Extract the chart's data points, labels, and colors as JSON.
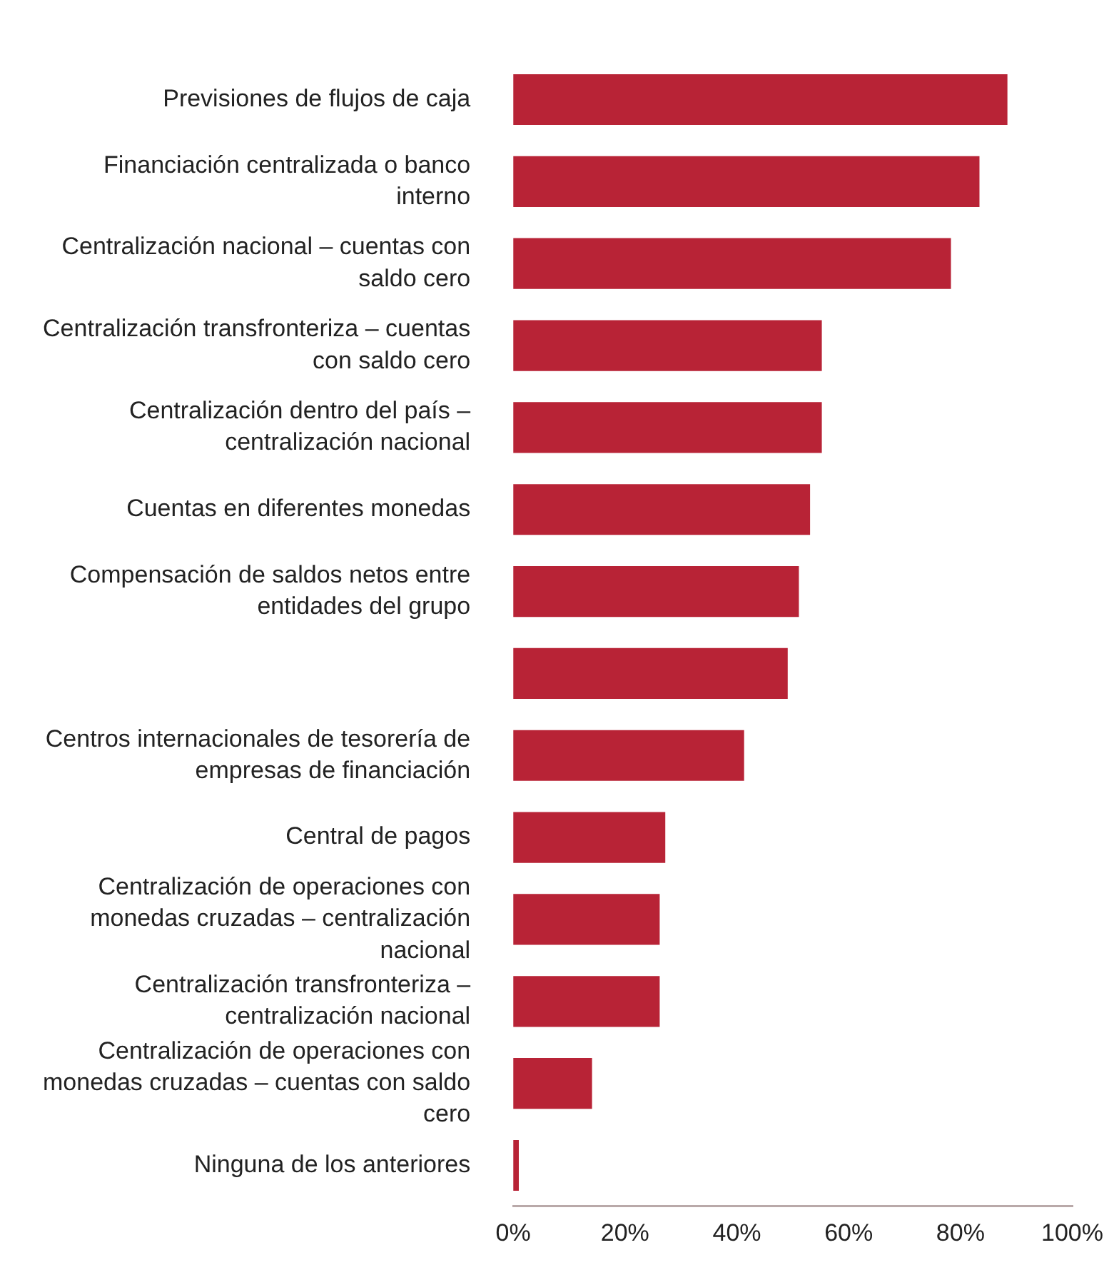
{
  "chart_data": {
    "type": "bar",
    "orientation": "horizontal",
    "categories": [
      "Previsiones de flujos de caja",
      "Financiación centralizada o banco interno",
      "Centralización nacional – cuentas con saldo cero",
      "Centralización transfronteriza – cuentas con saldo cero",
      "Centralización dentro del país – centralización nacional",
      "Cuentas en diferentes monedas",
      "Compensación de saldos netos entre entidades del grupo",
      null,
      "Centros internacionales de tesorería de empresas de financiación",
      "Central de pagos",
      "Centralización de operaciones con monedas cruzadas – centralización nacional",
      "Centralización transfronteriza – centralización nacional",
      "Centralización de operaciones con monedas cruzadas – cuentas con saldo cero",
      "Ninguna de los anteriores"
    ],
    "values": [
      88.4,
      83.4,
      78.3,
      55.2,
      55.2,
      53.1,
      51.1,
      49.1,
      41.3,
      27.2,
      26.2,
      26.2,
      14.1,
      1.0
    ],
    "color": "#b82336",
    "xlim": [
      0,
      100
    ],
    "xticks": [
      {
        "value": 0,
        "label": "0%"
      },
      {
        "value": 20,
        "label": "20%"
      },
      {
        "value": 40,
        "label": "40%"
      },
      {
        "value": 60,
        "label": "60%"
      },
      {
        "value": 80,
        "label": "80%"
      },
      {
        "value": 100,
        "label": "100%"
      }
    ],
    "grid": false,
    "legend": false
  }
}
